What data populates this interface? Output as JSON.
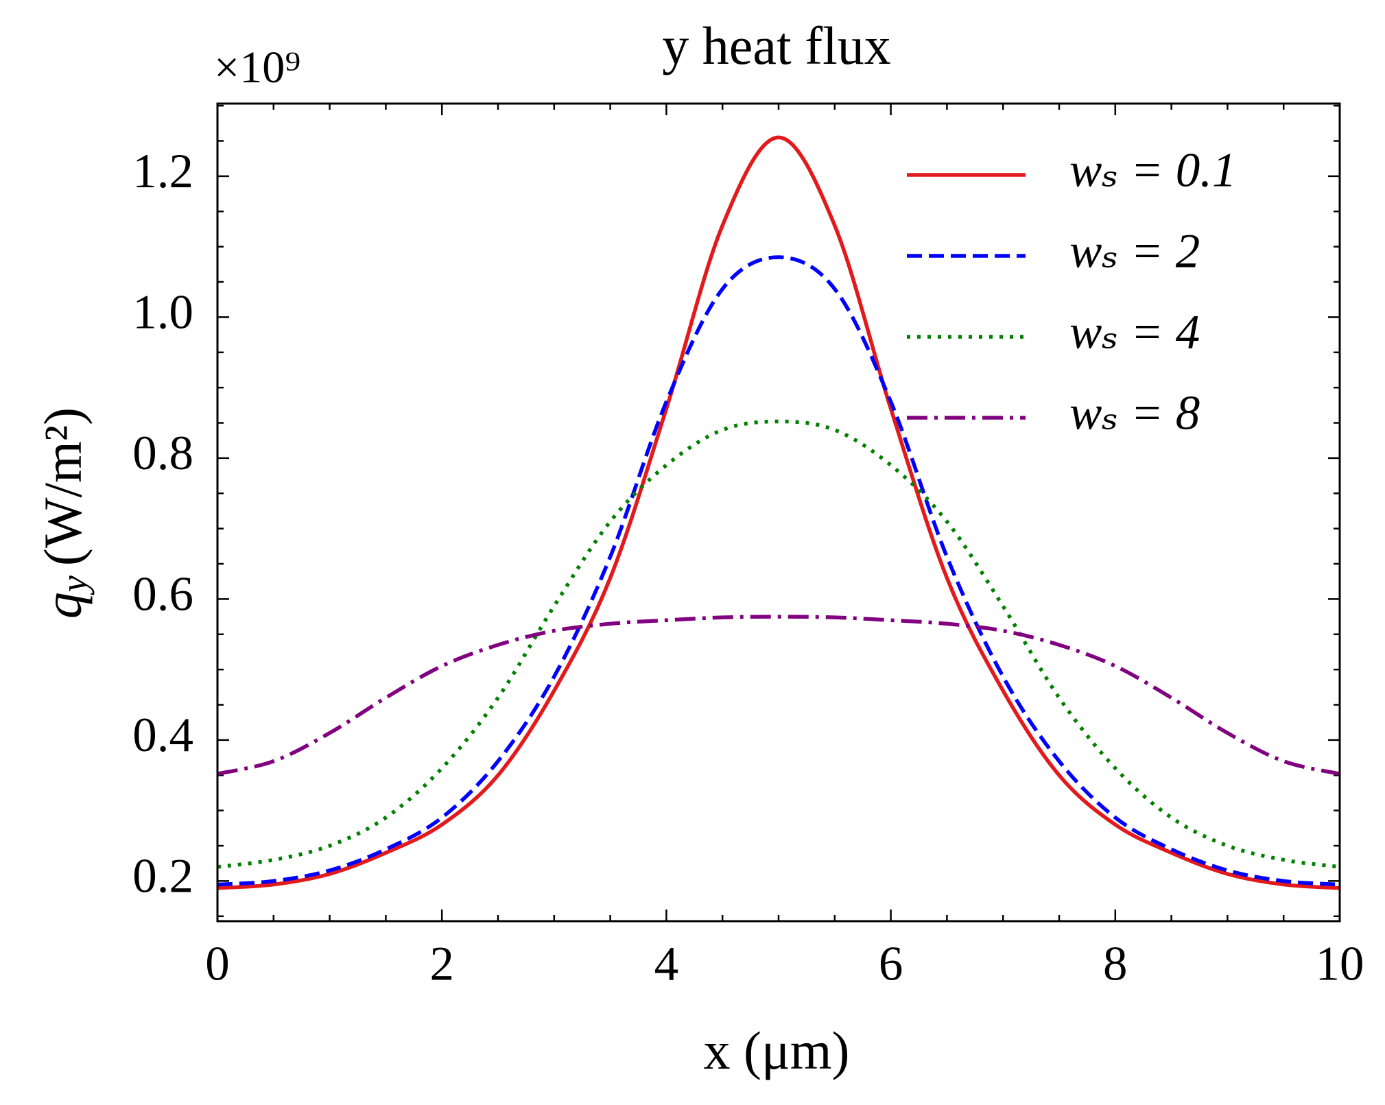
{
  "chart_data": {
    "type": "line",
    "title": "y heat flux",
    "offset_label": "×10⁹",
    "xlabel": "x (μm)",
    "ylabel": {
      "symbol": "q",
      "subscript": "y",
      "unit": "(W/m²)"
    },
    "x": [
      0,
      0.5,
      1,
      1.5,
      2,
      2.5,
      3,
      3.5,
      4,
      4.5,
      5,
      5.5,
      6,
      6.5,
      7,
      7.5,
      8,
      8.5,
      9,
      9.5,
      10
    ],
    "series": [
      {
        "name": "wₛ = 0.1",
        "color": "#e31a1c",
        "dash": "solid",
        "values": [
          0.19,
          0.195,
          0.21,
          0.24,
          0.28,
          0.35,
          0.47,
          0.63,
          0.87,
          1.13,
          1.255,
          1.13,
          0.87,
          0.63,
          0.47,
          0.35,
          0.28,
          0.24,
          0.21,
          0.195,
          0.19
        ]
      },
      {
        "name": "wₛ = 2",
        "color": "#0000ff",
        "dash": "dashed",
        "values": [
          0.195,
          0.2,
          0.215,
          0.245,
          0.29,
          0.37,
          0.49,
          0.66,
          0.88,
          1.04,
          1.085,
          1.04,
          0.88,
          0.66,
          0.49,
          0.37,
          0.29,
          0.245,
          0.215,
          0.2,
          0.195
        ]
      },
      {
        "name": "wₛ = 4",
        "color": "#007f00",
        "dash": "dotted",
        "values": [
          0.22,
          0.23,
          0.25,
          0.29,
          0.36,
          0.46,
          0.59,
          0.71,
          0.79,
          0.84,
          0.852,
          0.84,
          0.79,
          0.71,
          0.59,
          0.46,
          0.36,
          0.29,
          0.25,
          0.23,
          0.22
        ]
      },
      {
        "name": "wₛ = 8",
        "color": "#800080",
        "dash": "dashdot",
        "values": [
          0.352,
          0.37,
          0.41,
          0.46,
          0.505,
          0.535,
          0.555,
          0.565,
          0.57,
          0.574,
          0.575,
          0.574,
          0.57,
          0.565,
          0.555,
          0.535,
          0.505,
          0.46,
          0.41,
          0.37,
          0.352
        ]
      }
    ],
    "xlim": [
      0,
      10
    ],
    "ylim": [
      0.143,
      1.303
    ],
    "xticks": [
      0,
      2,
      4,
      6,
      8,
      10
    ],
    "yticks": [
      0.2,
      {
        "value": 0.4,
        "label": "0.4"
      },
      0.6,
      0.8,
      {
        "value": 1.0,
        "label": "1.0"
      },
      1.2
    ],
    "xminorticks": [
      0.5,
      1,
      1.5,
      2.5,
      3,
      3.5,
      4.5,
      5,
      5.5,
      6.5,
      7,
      7.5,
      8.5,
      9,
      9.5
    ],
    "yminorticks": [
      0.15,
      0.25,
      0.3,
      0.35,
      0.45,
      0.5,
      0.55,
      0.65,
      0.7,
      0.75,
      0.85,
      0.9,
      0.95,
      1.05,
      1.1,
      1.15,
      1.25,
      1.3
    ],
    "legend": "upper right",
    "grid": false
  }
}
